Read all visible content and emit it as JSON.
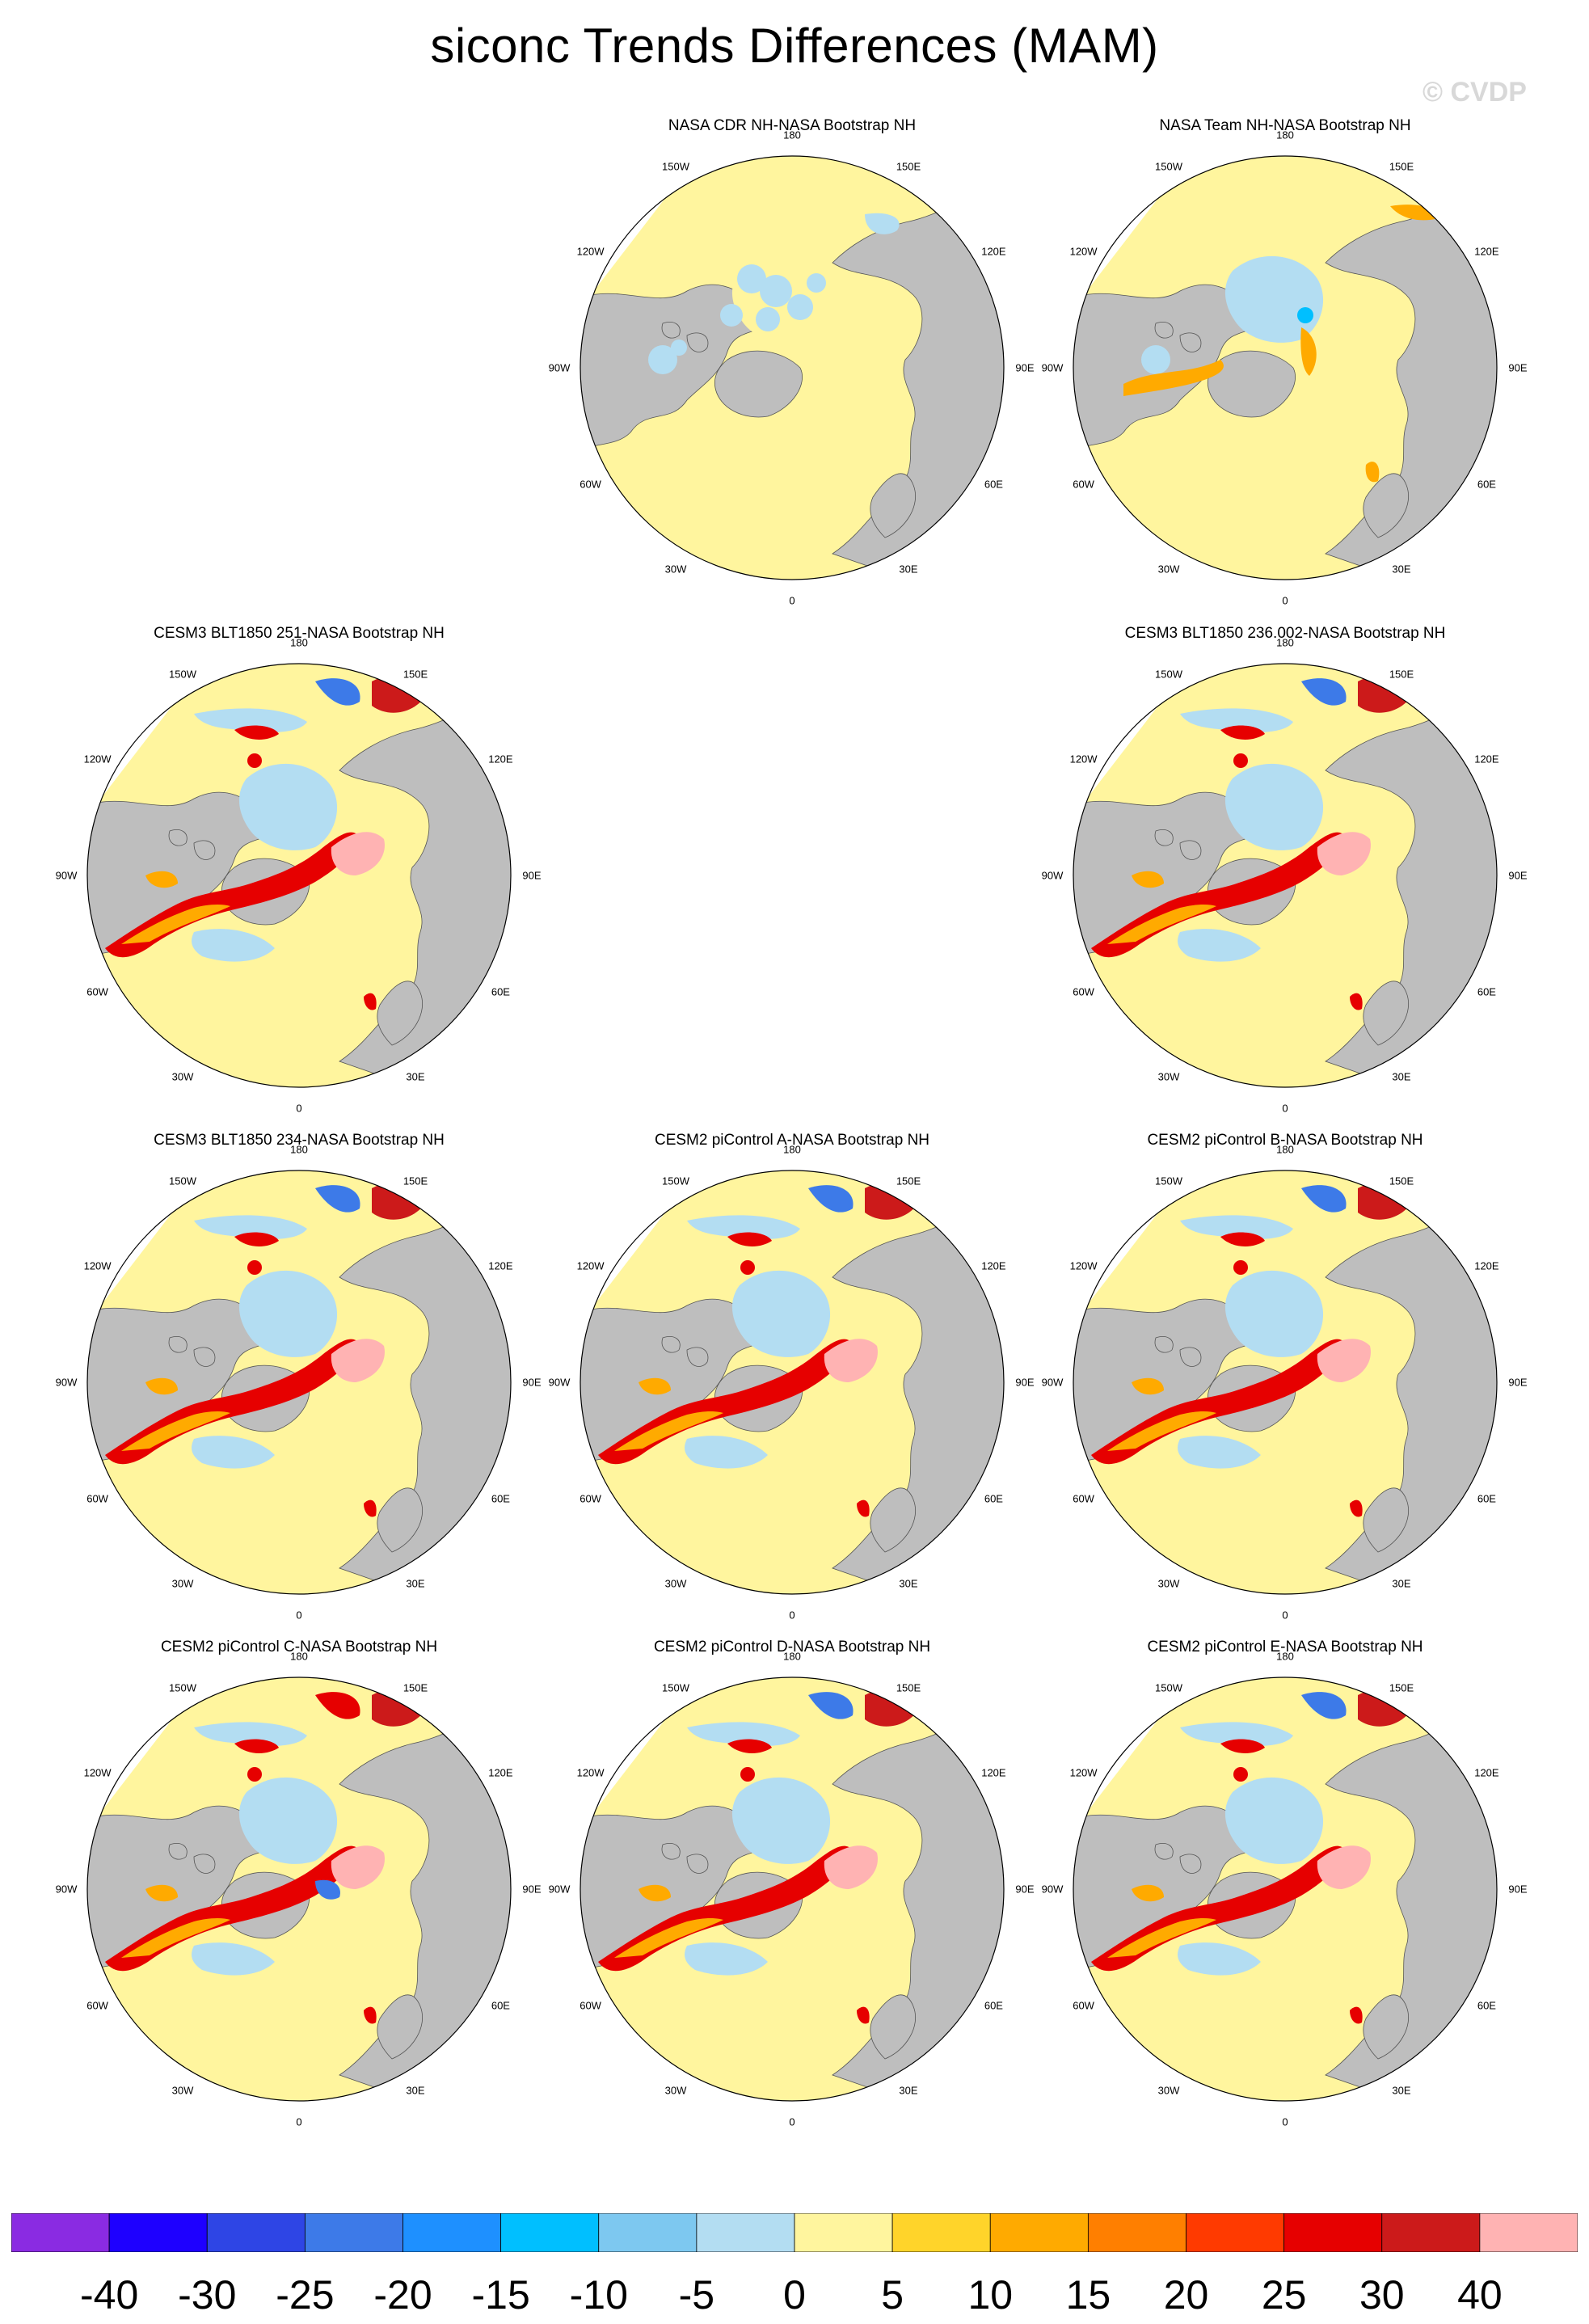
{
  "title": "siconc Trends Differences (MAM)",
  "watermark": "© CVDP",
  "colors": {
    "land": "#bebebe",
    "colorbar": [
      "#8a2be2",
      "#1e00ff",
      "#2e45e5",
      "#3d7ae8",
      "#1e90ff",
      "#00bfff",
      "#7dc8f0",
      "#b3ddf2",
      "#fff59e",
      "#ffd42a",
      "#ffaa00",
      "#ff7f00",
      "#ff3a00",
      "#e60000",
      "#cc1a1a",
      "#ffb3b3"
    ]
  },
  "lon_labels": [
    "180",
    "150E",
    "120E",
    "90E",
    "60E",
    "30E",
    "0",
    "30W",
    "60W",
    "90W",
    "120W",
    "150W"
  ],
  "panels": [
    {
      "title": "NASA CDR NH-NASA Bootstrap NH",
      "pattern": "cdr"
    },
    {
      "title": "NASA Team NH-NASA Bootstrap NH",
      "pattern": "team"
    },
    {
      "title": "CESM3 BLT1850 251-NASA Bootstrap NH",
      "pattern": "model"
    },
    {
      "title": "CESM3 BLT1850 236.002-NASA Bootstrap NH",
      "pattern": "model"
    },
    {
      "title": "CESM3 BLT1850 234-NASA Bootstrap NH",
      "pattern": "model"
    },
    {
      "title": "CESM2 piControl A-NASA Bootstrap NH",
      "pattern": "model"
    },
    {
      "title": "CESM2 piControl B-NASA Bootstrap NH",
      "pattern": "model"
    },
    {
      "title": "CESM2 piControl C-NASA Bootstrap NH",
      "pattern": "modelC"
    },
    {
      "title": "CESM2 piControl D-NASA Bootstrap NH",
      "pattern": "model"
    },
    {
      "title": "CESM2 piControl E-NASA Bootstrap NH",
      "pattern": "model"
    }
  ],
  "colorbar_labels": [
    "-40",
    "-30",
    "-25",
    "-20",
    "-15",
    "-10",
    "-5",
    "0",
    "5",
    "10",
    "15",
    "20",
    "25",
    "30",
    "40"
  ]
}
